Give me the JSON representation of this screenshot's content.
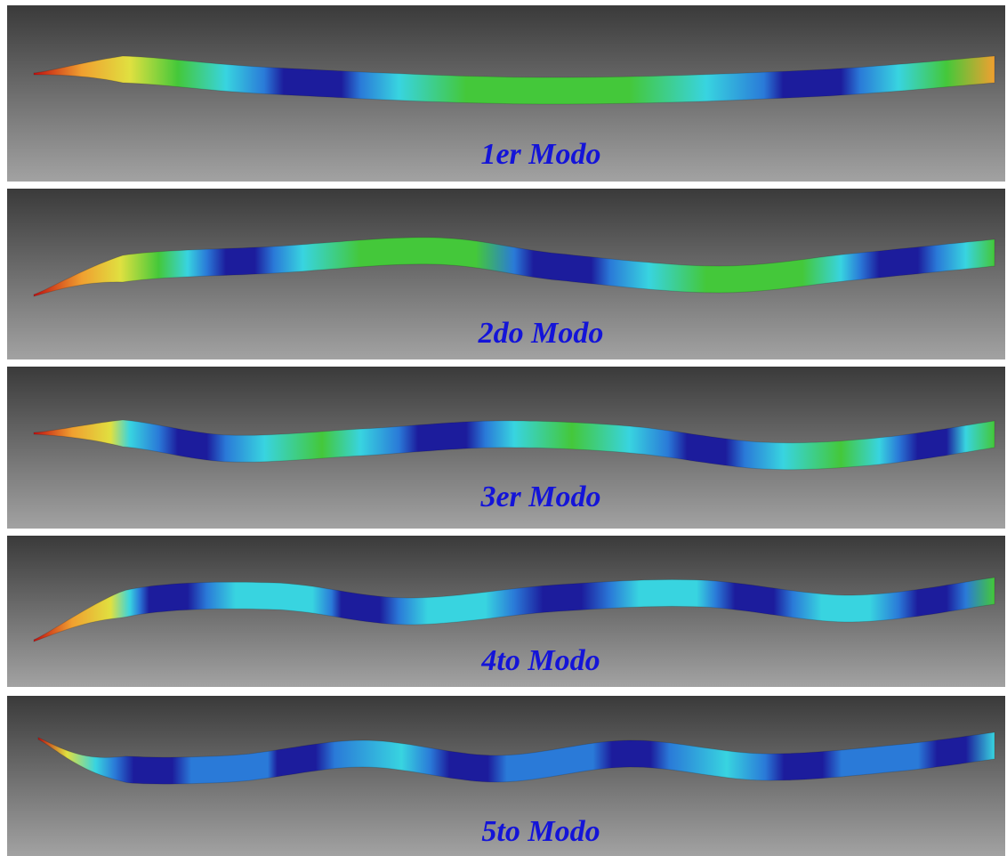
{
  "panels": [
    {
      "label": "1er Modo"
    },
    {
      "label": "2do Modo"
    },
    {
      "label": "3er Modo"
    },
    {
      "label": "4to Modo"
    },
    {
      "label": "5to Modo"
    }
  ]
}
